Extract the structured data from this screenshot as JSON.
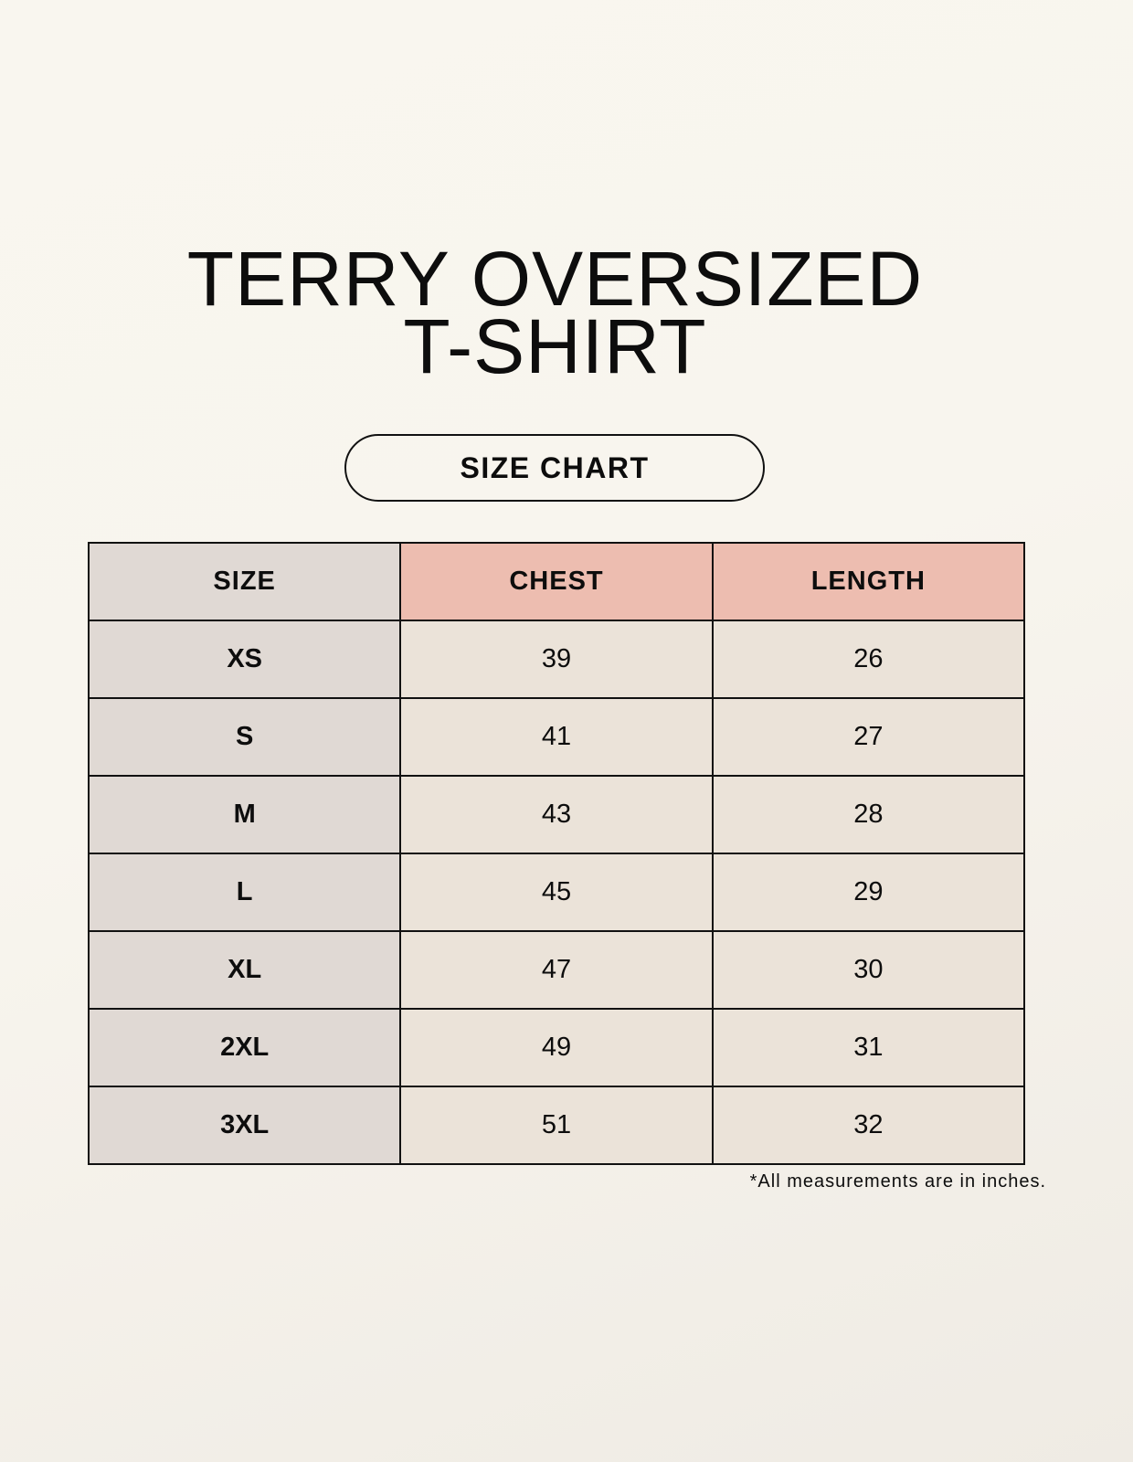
{
  "title_lines": [
    "TERRY OVERSIZED",
    "T-SHIRT"
  ],
  "badge": "SIZE CHART",
  "table": {
    "headers": [
      "SIZE",
      "CHEST",
      "LENGTH"
    ],
    "rows": [
      [
        "XS",
        "39",
        "26"
      ],
      [
        "S",
        "41",
        "27"
      ],
      [
        "M",
        "43",
        "28"
      ],
      [
        "L",
        "45",
        "29"
      ],
      [
        "XL",
        "47",
        "30"
      ],
      [
        "2XL",
        "49",
        "31"
      ],
      [
        "3XL",
        "51",
        "32"
      ]
    ]
  },
  "footnote": "*All measurements are in inches.",
  "colors": {
    "size_column": "#e0d9d4",
    "header_accent": "#edbdb0",
    "cell": "#ebe3d9"
  }
}
